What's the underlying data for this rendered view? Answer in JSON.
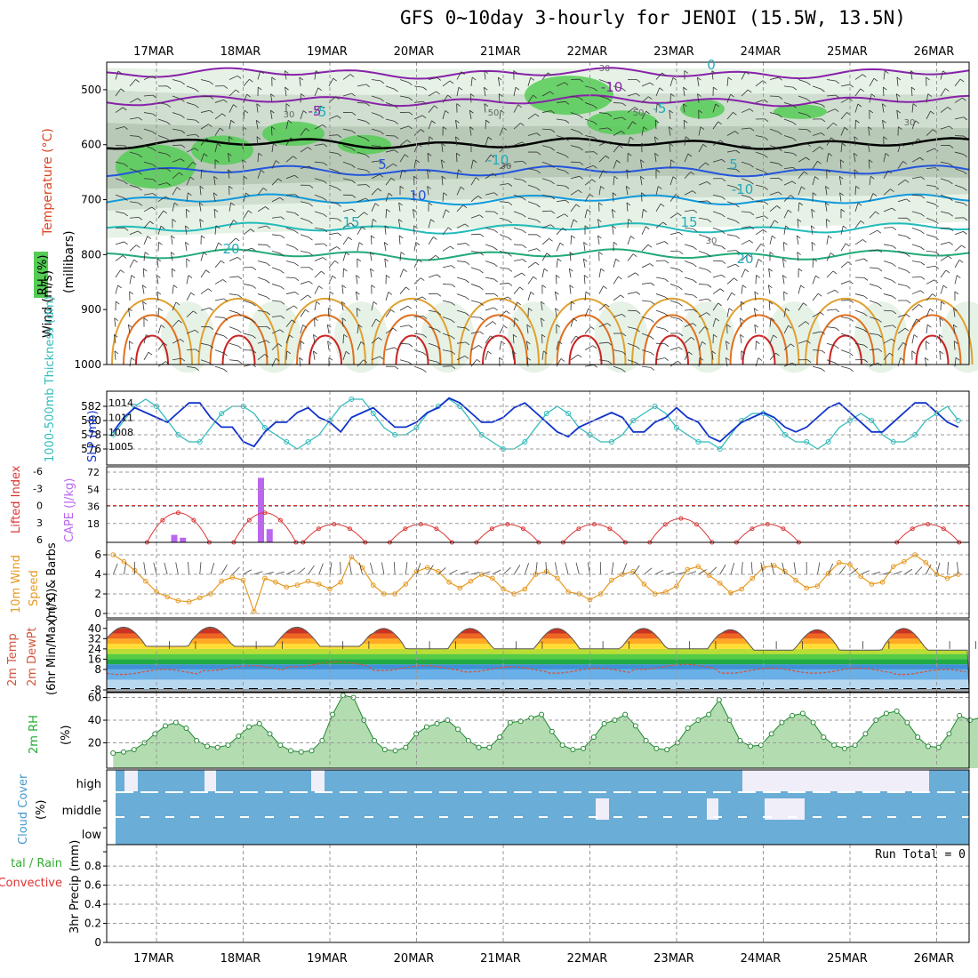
{
  "title": "GFS 0~10day 3-hourly for JENOI (15.5W, 13.5N)",
  "dates": [
    "17MAR",
    "18MAR",
    "19MAR",
    "20MAR",
    "21MAR",
    "22MAR",
    "23MAR",
    "24MAR",
    "25MAR",
    "26MAR"
  ],
  "colors": {
    "frame": "#000000",
    "grid": "#999999",
    "rh_green": "#55cc55",
    "rh_dark": "#aabbaa",
    "thickness": "#33bbbb",
    "slp": "#1133cc",
    "lifted_index": "#dd3333",
    "cape": "#bb66ee",
    "wind_speed": "#e69a22",
    "rh_fill": "#88cc88",
    "cloud_blue": "#6aadd6",
    "temp_dew": "#d2553c"
  },
  "chart_data": [
    {
      "id": "upper_air",
      "type": "heatmap",
      "ylabel_parts": [
        "Wind (m/s)",
        "Temperature (°C)",
        "RH (%)"
      ],
      "yaxis_word": "(millibars)",
      "yticks": [
        500,
        600,
        700,
        800,
        900,
        1000
      ],
      "temperature_labels": [
        "-10",
        "-5",
        "5",
        "10",
        "15",
        "20",
        "-10",
        "-5",
        "5",
        "-10",
        "15",
        "20",
        "0",
        "-5"
      ],
      "rh_labels": [
        "30",
        "30",
        "30",
        "30",
        "30",
        "50",
        "50"
      ]
    },
    {
      "id": "thickness_slp",
      "type": "line",
      "ylabel_left": "1000-500mb Thickness (dm)",
      "ylabel_right": "SLP (mb)",
      "yticks_left": [
        576,
        578,
        580,
        582
      ],
      "yticks_right": [
        1005,
        1008,
        1011,
        1014
      ],
      "series": [
        {
          "name": "SLP",
          "values": [
            1008,
            1011,
            1013,
            1012,
            1011,
            1010,
            1012,
            1014,
            1014,
            1011,
            1009,
            1009,
            1006,
            1005,
            1008,
            1010,
            1010,
            1012,
            1013,
            1011,
            1010,
            1008,
            1011,
            1012,
            1013,
            1011,
            1009,
            1009,
            1010,
            1012,
            1013,
            1015,
            1014,
            1012,
            1010,
            1010,
            1011,
            1013,
            1014,
            1012,
            1010,
            1008,
            1007,
            1009,
            1010,
            1011,
            1012,
            1011,
            1008,
            1008,
            1010,
            1011,
            1013,
            1011,
            1010,
            1007,
            1006,
            1008,
            1010,
            1011,
            1012,
            1011,
            1009,
            1008,
            1009,
            1011,
            1013,
            1014,
            1012,
            1010,
            1008,
            1008,
            1010,
            1012,
            1014,
            1014,
            1012,
            1010,
            1009
          ]
        },
        {
          "name": "Thickness",
          "values": [
            578,
            580,
            582,
            583,
            582,
            580,
            578,
            577,
            577,
            579,
            581,
            582,
            582,
            581,
            579,
            578,
            577,
            576,
            577,
            578,
            580,
            582,
            583,
            583,
            581,
            579,
            578,
            578,
            579,
            581,
            582,
            583,
            582,
            580,
            578,
            577,
            576,
            576,
            577,
            579,
            581,
            582,
            581,
            579,
            578,
            577,
            577,
            578,
            580,
            581,
            582,
            581,
            579,
            578,
            577,
            577,
            576,
            578,
            580,
            581,
            581,
            580,
            578,
            577,
            577,
            576,
            577,
            579,
            580,
            581,
            580,
            578,
            577,
            577,
            578,
            580,
            581,
            582,
            580
          ]
        }
      ]
    },
    {
      "id": "li_cape",
      "type": "bar",
      "ylabel_left": "Lifted Index",
      "ylabel_right": "CAPE (J/kg)",
      "yticks_left": [
        "6",
        "3",
        "0",
        "-3",
        "-6"
      ],
      "yticks_right": [
        18,
        36,
        54,
        72
      ],
      "lifted_index_peaks": [
        {
          "day": 0.25,
          "value": 0
        },
        {
          "day": 1.25,
          "value": 0
        },
        {
          "day": 2.05,
          "value": 4
        },
        {
          "day": 3.05,
          "value": 4
        },
        {
          "day": 4.05,
          "value": 4
        },
        {
          "day": 5.05,
          "value": 4
        },
        {
          "day": 6.05,
          "value": 2
        },
        {
          "day": 7.05,
          "value": 4
        },
        {
          "day": 8.9,
          "value": 4
        }
      ],
      "cape_bars": [
        {
          "day": 0.2,
          "value": 6
        },
        {
          "day": 0.3,
          "value": 3
        },
        {
          "day": 1.2,
          "value": 66
        },
        {
          "day": 1.3,
          "value": 12
        }
      ],
      "zero_line": 0
    },
    {
      "id": "wind10m",
      "type": "line",
      "ylabel": [
        "10m Wind",
        "Speed",
        "(m/s) & Barbs"
      ],
      "yticks": [
        0,
        2,
        4,
        6
      ],
      "values": [
        6.0,
        5.3,
        4.4,
        3.3,
        2.2,
        1.7,
        1.3,
        1.2,
        1.6,
        2.0,
        3.3,
        3.7,
        3.4,
        0.2,
        3.6,
        3.2,
        2.7,
        2.9,
        3.3,
        3.0,
        2.5,
        3.2,
        5.8,
        4.7,
        2.9,
        2.0,
        2.0,
        3.0,
        4.3,
        4.7,
        4.3,
        3.2,
        2.6,
        3.3,
        4.0,
        3.6,
        2.5,
        2.0,
        2.5,
        4.0,
        4.3,
        3.6,
        2.2,
        2.0,
        1.4,
        2.0,
        3.4,
        4.0,
        4.3,
        3.0,
        2.0,
        2.2,
        2.8,
        4.5,
        4.8,
        3.9,
        3.1,
        2.1,
        2.5,
        3.6,
        4.7,
        4.9,
        4.3,
        3.4,
        2.6,
        2.8,
        4.1,
        5.2,
        5.0,
        3.8,
        3.0,
        3.2,
        4.8,
        5.3,
        6.0,
        5.2,
        4.0,
        3.6,
        4.0
      ]
    },
    {
      "id": "temp2m",
      "type": "area",
      "ylabel": [
        "2m Temp",
        "2m DewPt",
        "(6hr Min/Max) (°C)"
      ],
      "yticks": [
        -8,
        8,
        16,
        24,
        32,
        40
      ],
      "ytick_labels": [
        "-8",
        "8",
        "16",
        "24",
        "32",
        "40"
      ],
      "daily_max": [
        41,
        41,
        41,
        40,
        40,
        40,
        40,
        39,
        39,
        40
      ],
      "daily_min": [
        26,
        26,
        26,
        24,
        24,
        24,
        24,
        23,
        23,
        23
      ],
      "dewpoint": [
        6,
        9,
        12,
        9,
        8,
        7,
        10,
        7,
        7,
        6
      ]
    },
    {
      "id": "rh2m",
      "type": "area",
      "ylabel": [
        "2m RH",
        "(%)"
      ],
      "yticks": [
        20,
        40,
        60
      ],
      "values": [
        11,
        12,
        14,
        20,
        28,
        35,
        38,
        33,
        22,
        17,
        16,
        18,
        26,
        34,
        37,
        28,
        18,
        13,
        12,
        13,
        22,
        45,
        62,
        60,
        40,
        22,
        14,
        13,
        16,
        28,
        34,
        37,
        40,
        32,
        22,
        16,
        16,
        25,
        38,
        39,
        42,
        45,
        30,
        18,
        14,
        15,
        25,
        37,
        40,
        45,
        35,
        22,
        15,
        14,
        20,
        33,
        40,
        45,
        58,
        40,
        22,
        17,
        18,
        28,
        38,
        44,
        46,
        38,
        25,
        18,
        15,
        18,
        28,
        40,
        46,
        48,
        38,
        25,
        17,
        16,
        28,
        44,
        40,
        42
      ]
    },
    {
      "id": "cloud",
      "type": "heatmap",
      "ylabel": [
        "Cloud Cover",
        "(%)"
      ],
      "ytick_labels": [
        "high",
        "middle",
        "low"
      ]
    },
    {
      "id": "precip",
      "type": "bar",
      "ylabel_left_parts": [
        "tal / Rain",
        "Convective"
      ],
      "ylabel": "3hr Precip (mm)",
      "yticks": [
        0,
        0.2,
        0.4,
        0.6,
        0.8
      ],
      "ytick_labels": [
        "0",
        "0.2",
        "0.4",
        "0.6",
        "0.8"
      ],
      "run_total": "Run Total = 0",
      "values": []
    }
  ]
}
